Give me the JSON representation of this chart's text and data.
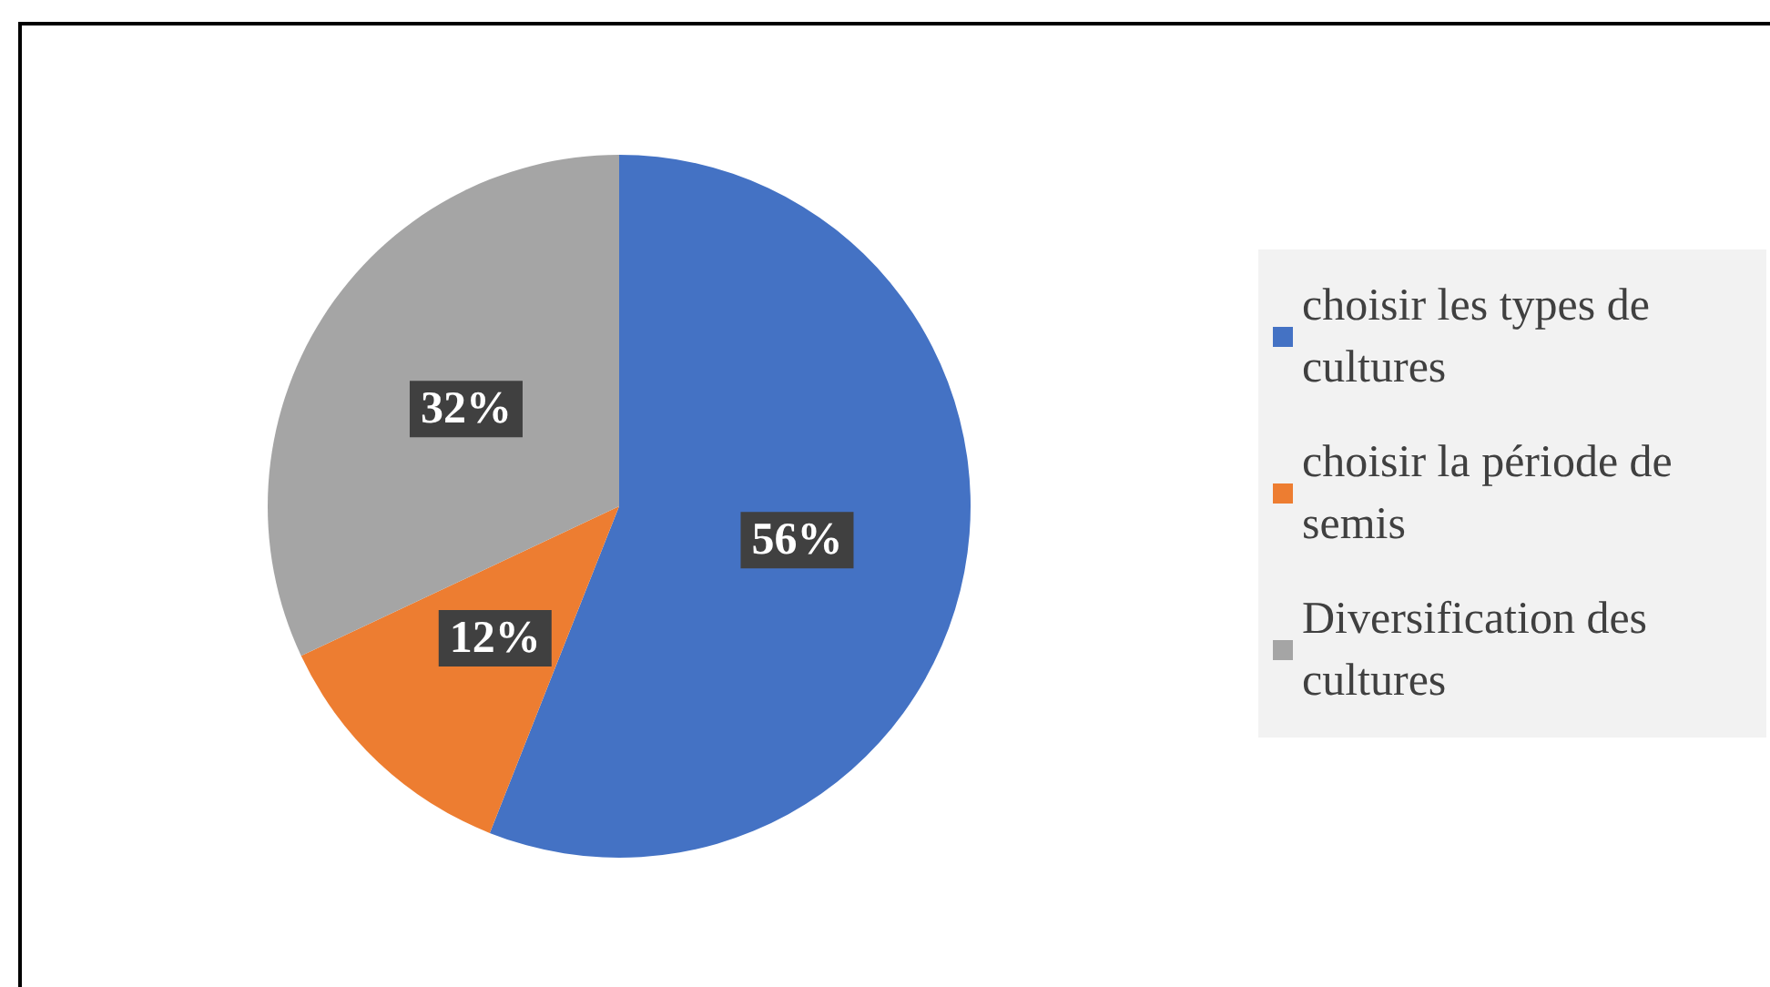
{
  "chart_data": {
    "type": "pie",
    "categories": [
      "choisir les types de cultures",
      "choisir la période de semis",
      "Diversification des cultures"
    ],
    "values": [
      56,
      12,
      32
    ],
    "colors": [
      "#4472c4",
      "#ed7d31",
      "#a5a5a5"
    ],
    "value_labels": [
      "56%",
      "12%",
      "32%"
    ],
    "legend": "right"
  }
}
